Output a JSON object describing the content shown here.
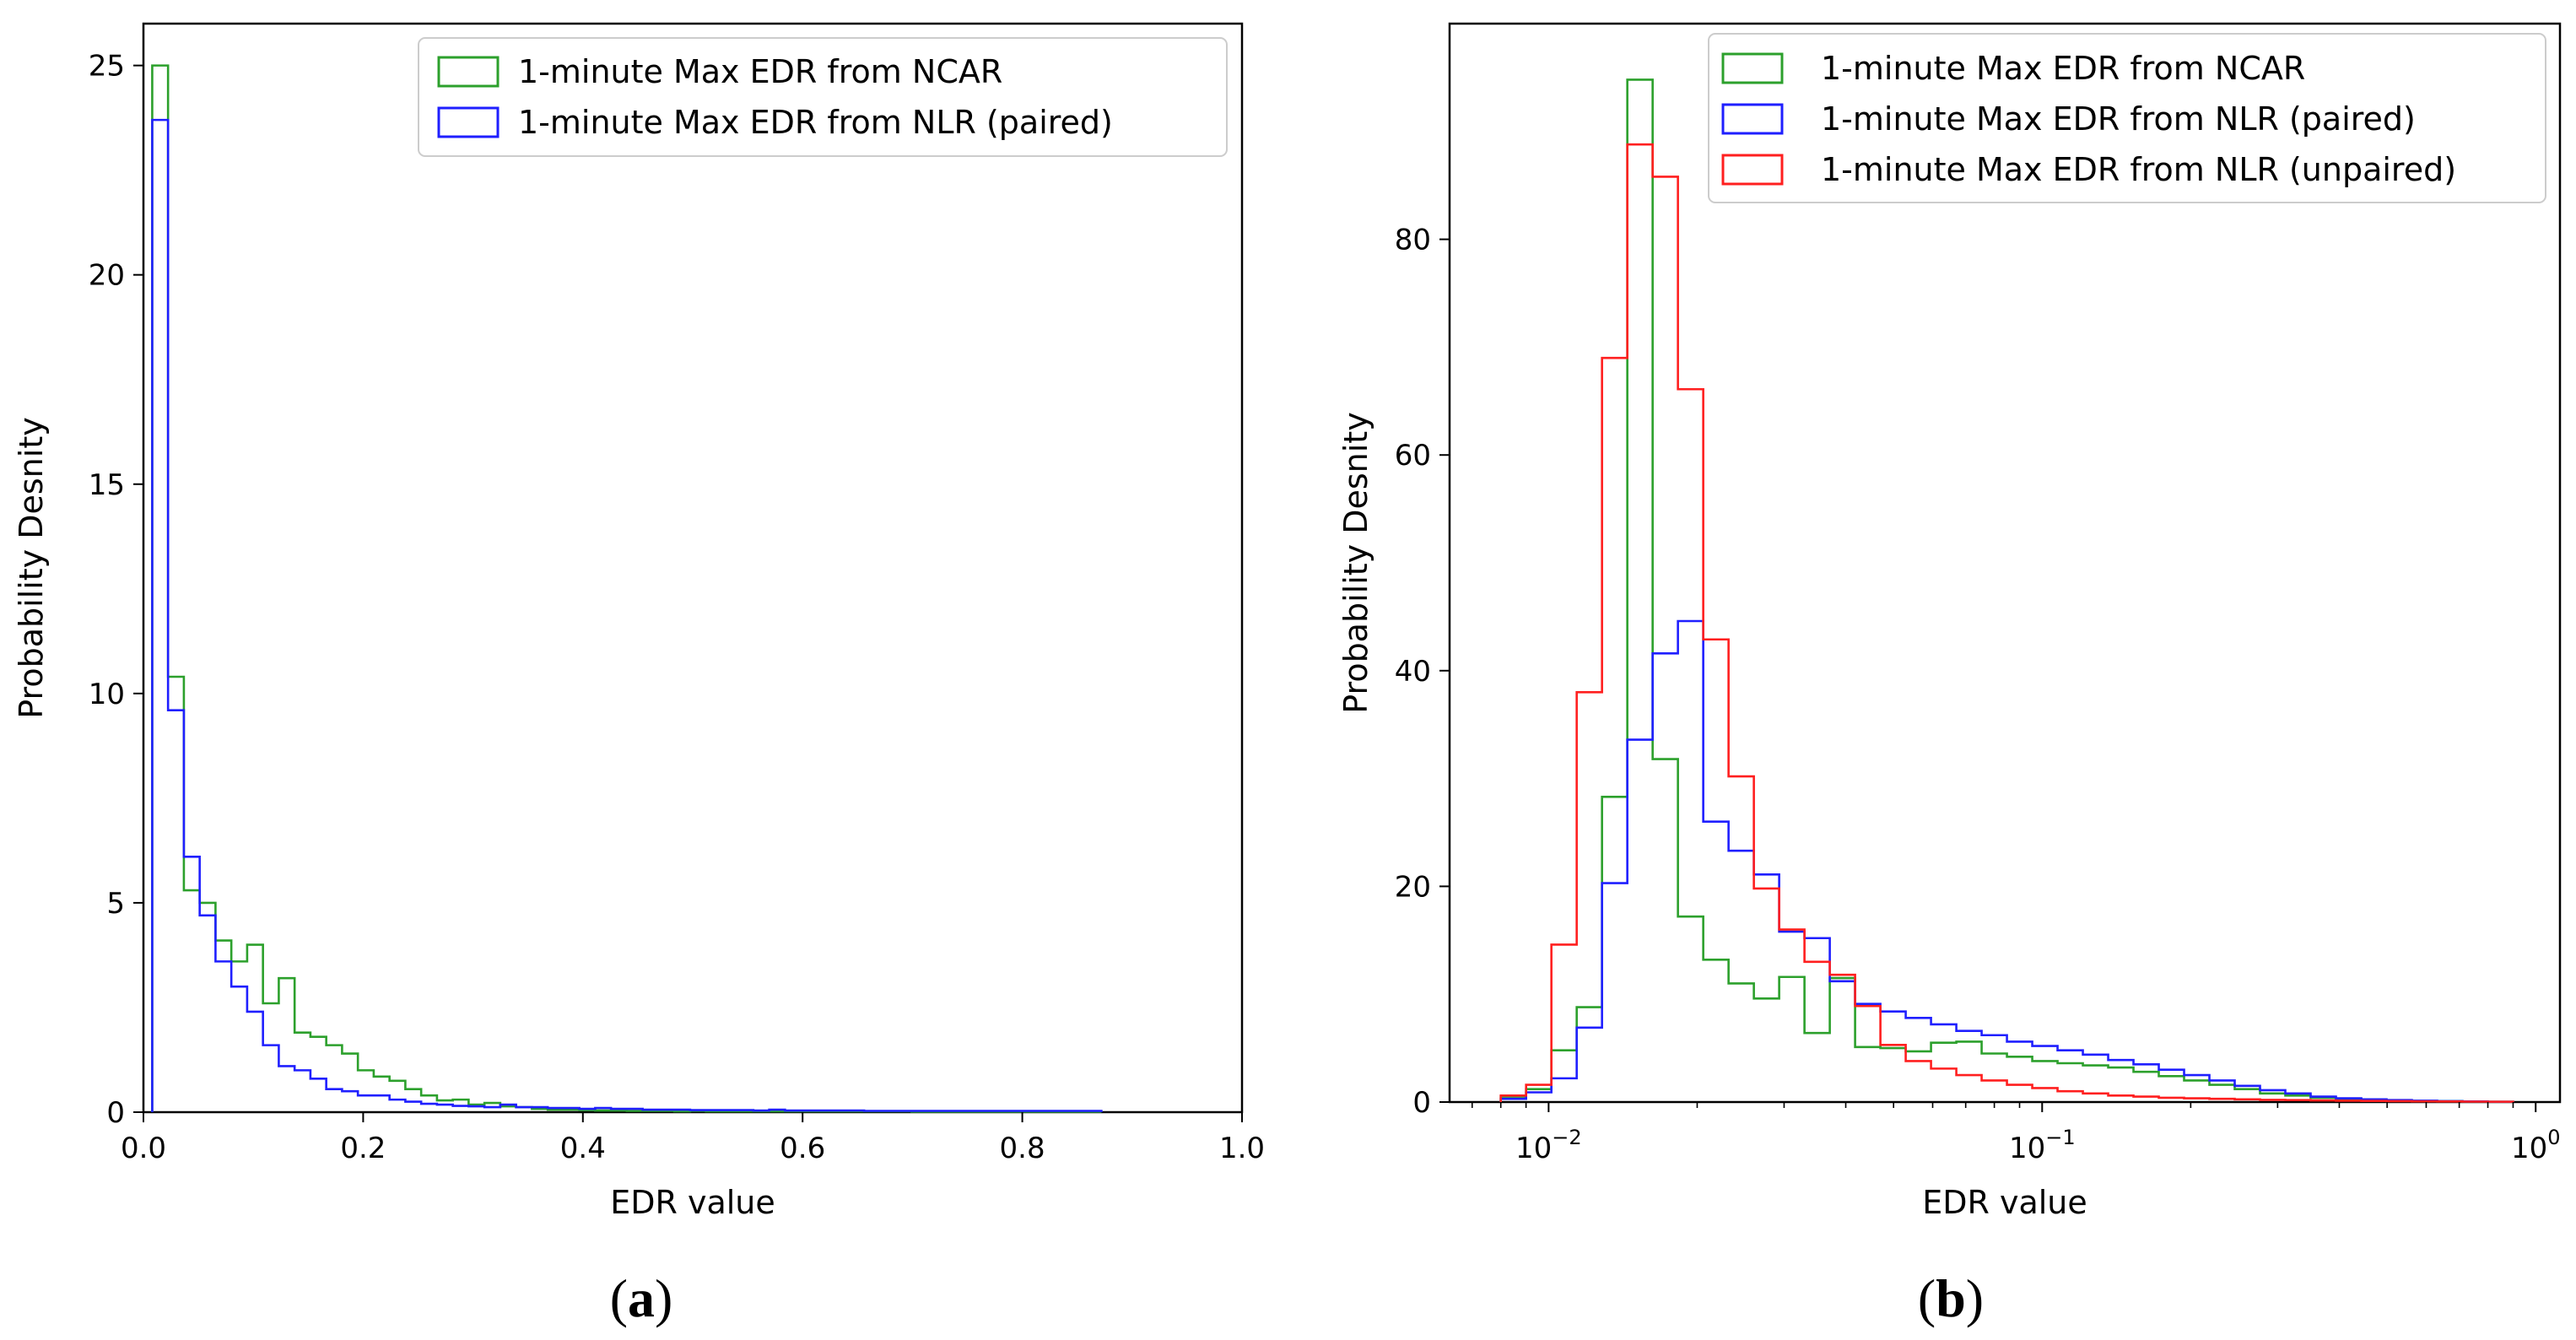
{
  "chart_data": [
    {
      "id": "a",
      "type": "histogram-step",
      "caption": "a",
      "xlabel": "EDR value",
      "ylabel": "Probability Desnity",
      "xscale": "linear",
      "xlim": [
        0,
        1.0
      ],
      "ylim": [
        0,
        26
      ],
      "xticks": [
        0.0,
        0.2,
        0.4,
        0.6,
        0.8,
        1.0
      ],
      "xtick_labels": [
        "0.0",
        "0.2",
        "0.4",
        "0.6",
        "0.8",
        "1.0"
      ],
      "yticks": [
        0,
        5,
        10,
        15,
        20,
        25
      ],
      "ytick_labels": [
        "0",
        "5",
        "10",
        "15",
        "20",
        "25"
      ],
      "legend_position": "top-right",
      "series": [
        {
          "name": "1-minute Max EDR from NCAR",
          "color": "#2ca02c",
          "edges": [
            0.008,
            0.0224,
            0.0368,
            0.0512,
            0.0656,
            0.08,
            0.0944,
            0.1088,
            0.1232,
            0.1376,
            0.152,
            0.1664,
            0.1808,
            0.1952,
            0.2096,
            0.224,
            0.2384,
            0.2528,
            0.2672,
            0.2816,
            0.296,
            0.3104,
            0.3248,
            0.3392,
            0.3536,
            0.368,
            0.3824,
            0.3968,
            0.4112,
            0.4256,
            0.44,
            0.4544,
            0.4688,
            0.4832,
            0.4976,
            0.512,
            0.5264,
            0.5408,
            0.5552,
            0.5696,
            0.584,
            0.5984,
            0.6128,
            0.6272,
            0.6416,
            0.656,
            0.6704,
            0.6848,
            0.6992,
            0.7136,
            0.728,
            0.7424,
            0.7568,
            0.7712,
            0.7856,
            0.8,
            0.8144,
            0.8288,
            0.8432,
            0.8576,
            0.872
          ],
          "values": [
            25.0,
            10.4,
            5.3,
            5.0,
            4.1,
            3.6,
            4.0,
            2.6,
            3.2,
            1.9,
            1.8,
            1.6,
            1.4,
            1.0,
            0.85,
            0.75,
            0.55,
            0.4,
            0.28,
            0.3,
            0.18,
            0.22,
            0.14,
            0.12,
            0.08,
            0.06,
            0.06,
            0.05,
            0.04,
            0.04,
            0.03,
            0.03,
            0.03,
            0.02,
            0.03,
            0.02,
            0.02,
            0.02,
            0.02,
            0.02,
            0.02,
            0.02,
            0.02,
            0.02,
            0.02,
            0.02,
            0.02,
            0.02,
            0.01,
            0.01,
            0.01,
            0.01,
            0.01,
            0.01,
            0.01,
            0.01,
            0.01,
            0.01,
            0.01,
            0.01
          ]
        },
        {
          "name": "1-minute Max EDR from NLR (paired)",
          "color": "#1f1fff",
          "edges": [
            0.008,
            0.0224,
            0.0368,
            0.0512,
            0.0656,
            0.08,
            0.0944,
            0.1088,
            0.1232,
            0.1376,
            0.152,
            0.1664,
            0.1808,
            0.1952,
            0.2096,
            0.224,
            0.2384,
            0.2528,
            0.2672,
            0.2816,
            0.296,
            0.3104,
            0.3248,
            0.3392,
            0.3536,
            0.368,
            0.3824,
            0.3968,
            0.4112,
            0.4256,
            0.44,
            0.4544,
            0.4688,
            0.4832,
            0.4976,
            0.512,
            0.5264,
            0.5408,
            0.5552,
            0.5696,
            0.584,
            0.5984,
            0.6128,
            0.6272,
            0.6416,
            0.656,
            0.6704,
            0.6848,
            0.6992,
            0.7136,
            0.728,
            0.7424,
            0.7568,
            0.7712,
            0.7856,
            0.8,
            0.8144,
            0.8288,
            0.8432,
            0.8576,
            0.872
          ],
          "values": [
            23.7,
            9.6,
            6.1,
            4.7,
            3.6,
            3.0,
            2.4,
            1.6,
            1.1,
            1.0,
            0.8,
            0.55,
            0.5,
            0.4,
            0.4,
            0.3,
            0.25,
            0.2,
            0.18,
            0.15,
            0.14,
            0.12,
            0.18,
            0.12,
            0.12,
            0.1,
            0.1,
            0.08,
            0.1,
            0.08,
            0.08,
            0.06,
            0.06,
            0.06,
            0.05,
            0.05,
            0.05,
            0.05,
            0.04,
            0.06,
            0.04,
            0.04,
            0.04,
            0.04,
            0.04,
            0.03,
            0.03,
            0.03,
            0.03,
            0.03,
            0.03,
            0.03,
            0.03,
            0.03,
            0.03,
            0.03,
            0.03,
            0.03,
            0.03,
            0.03
          ]
        }
      ]
    },
    {
      "id": "b",
      "type": "histogram-step",
      "caption": "b",
      "xlabel": "EDR value",
      "ylabel": "Probability Desnity",
      "xscale": "log",
      "xlim": [
        0.0063,
        1.12
      ],
      "ylim": [
        0,
        100
      ],
      "xticks": [
        0.01,
        0.1,
        1
      ],
      "xtick_labels": [
        [
          "10",
          "−2"
        ],
        [
          "10",
          "−1"
        ],
        [
          "10",
          "0"
        ]
      ],
      "yticks": [
        0,
        20,
        40,
        60,
        80
      ],
      "ytick_labels": [
        "0",
        "20",
        "40",
        "60",
        "80"
      ],
      "legend_position": "top-right",
      "series": [
        {
          "name": "1-minute Max EDR from NCAR",
          "color": "#2ca02c",
          "values": [
            0.5,
            1.2,
            4.8,
            8.8,
            28.3,
            94.8,
            31.8,
            17.2,
            13.2,
            11.0,
            9.6,
            11.6,
            6.4,
            11.5,
            5.1,
            5.0,
            4.7,
            5.5,
            5.6,
            4.5,
            4.2,
            3.8,
            3.6,
            3.4,
            3.2,
            2.8,
            2.4,
            2.0,
            1.6,
            1.2,
            0.8,
            0.6,
            0.4,
            0.3,
            0.2,
            0.15,
            0.1,
            0.08,
            0.05,
            0.03
          ]
        },
        {
          "name": "1-minute Max EDR from NLR (paired)",
          "color": "#1f1fff",
          "values": [
            0.3,
            0.9,
            2.2,
            6.9,
            20.3,
            33.6,
            41.6,
            44.6,
            26.0,
            23.3,
            21.1,
            15.8,
            15.2,
            11.2,
            9.1,
            8.4,
            7.8,
            7.2,
            6.6,
            6.2,
            5.6,
            5.2,
            4.8,
            4.4,
            3.9,
            3.5,
            3.0,
            2.5,
            2.0,
            1.5,
            1.1,
            0.8,
            0.5,
            0.35,
            0.25,
            0.18,
            0.12,
            0.08,
            0.05,
            0.03
          ]
        },
        {
          "name": "1-minute Max EDR from NLR (unpaired)",
          "color": "#ff1f1f",
          "values": [
            0.6,
            1.6,
            14.6,
            38.0,
            69.0,
            88.8,
            85.8,
            66.1,
            42.9,
            30.2,
            19.8,
            16.0,
            13.0,
            11.8,
            8.9,
            5.3,
            3.8,
            3.1,
            2.5,
            2.0,
            1.6,
            1.3,
            1.0,
            0.8,
            0.6,
            0.5,
            0.4,
            0.35,
            0.3,
            0.25,
            0.2,
            0.18,
            0.15,
            0.12,
            0.1,
            0.08,
            0.06,
            0.05,
            0.04,
            0.03
          ]
        }
      ]
    }
  ]
}
